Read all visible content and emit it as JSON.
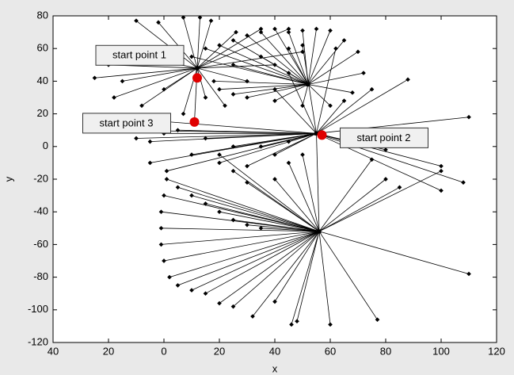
{
  "chart_data": {
    "type": "network",
    "xlabel": "x",
    "ylabel": "y",
    "xlim": [
      -40,
      120
    ],
    "ylim": [
      -120,
      80
    ],
    "xticks": [
      {
        "value": -40,
        "label": "40"
      },
      {
        "value": -20,
        "label": "20"
      },
      0,
      20,
      40,
      60,
      80,
      100,
      120
    ],
    "yticks": [
      -120,
      -100,
      -80,
      -60,
      -40,
      -20,
      0,
      20,
      40,
      60,
      80
    ],
    "line_color": "#000000",
    "start_color": "#e00000",
    "annotations": [
      {
        "text": "start point 1",
        "x": 12,
        "y": 42
      },
      {
        "text": "start point 2",
        "x": 57,
        "y": 7
      },
      {
        "text": "start point 3",
        "x": 11,
        "y": 15
      }
    ],
    "hubs": [
      {
        "x": 12,
        "y": 48,
        "end_x": [
          -10,
          -2,
          7,
          13,
          17,
          -18,
          -20,
          -25,
          -15,
          -18,
          -8,
          0,
          15,
          22,
          30,
          40,
          50,
          26,
          35,
          45,
          7,
          11
        ],
        "end_y": [
          77,
          76,
          79,
          79,
          77,
          58,
          50,
          42,
          40,
          30,
          25,
          35,
          30,
          25,
          40,
          50,
          58,
          70,
          72,
          72,
          20,
          15
        ]
      },
      {
        "x": 55,
        "y": 8,
        "end_x": [
          -20,
          -15,
          -10,
          -5,
          0,
          5,
          15,
          25,
          35,
          45,
          110,
          100,
          108,
          100,
          80,
          65,
          75,
          88,
          62,
          50,
          45,
          40,
          -5,
          1,
          10,
          20,
          30,
          40,
          56
        ],
        "end_y": [
          18,
          10,
          5,
          3,
          8,
          10,
          5,
          0,
          0,
          3,
          18,
          -27,
          -22,
          -12,
          -2,
          28,
          35,
          41,
          60,
          62,
          45,
          35,
          -10,
          -15,
          -5,
          -10,
          -12,
          -5,
          -52
        ]
      },
      {
        "x": 56,
        "y": -52,
        "end_x": [
          1,
          0,
          -1,
          -1,
          -1,
          0,
          2,
          5,
          10,
          15,
          20,
          25,
          32,
          40,
          46,
          48,
          60,
          77,
          110,
          80,
          100,
          85,
          75,
          5,
          10,
          15,
          20,
          25,
          30,
          35,
          40,
          30,
          25,
          45,
          50,
          20
        ],
        "end_y": [
          -20,
          -30,
          -40,
          -50,
          -60,
          -70,
          -80,
          -85,
          -88,
          -90,
          -96,
          -98,
          -104,
          -95,
          -109,
          -107,
          -109,
          -106,
          -78,
          -20,
          -15,
          -25,
          -8,
          -25,
          -30,
          -35,
          -40,
          -45,
          -48,
          -50,
          -20,
          -22,
          -15,
          -10,
          -5,
          -5
        ]
      },
      {
        "x": 52,
        "y": 38,
        "end_x": [
          10,
          15,
          20,
          25,
          30,
          35,
          40,
          45,
          50,
          55,
          60,
          65,
          70,
          72,
          68,
          60,
          50,
          40,
          30,
          25,
          20,
          18,
          25,
          35,
          45
        ],
        "end_y": [
          55,
          60,
          62,
          65,
          68,
          70,
          72,
          70,
          71,
          72,
          71,
          65,
          58,
          45,
          33,
          25,
          25,
          28,
          30,
          32,
          35,
          40,
          50,
          55,
          60
        ]
      }
    ]
  }
}
